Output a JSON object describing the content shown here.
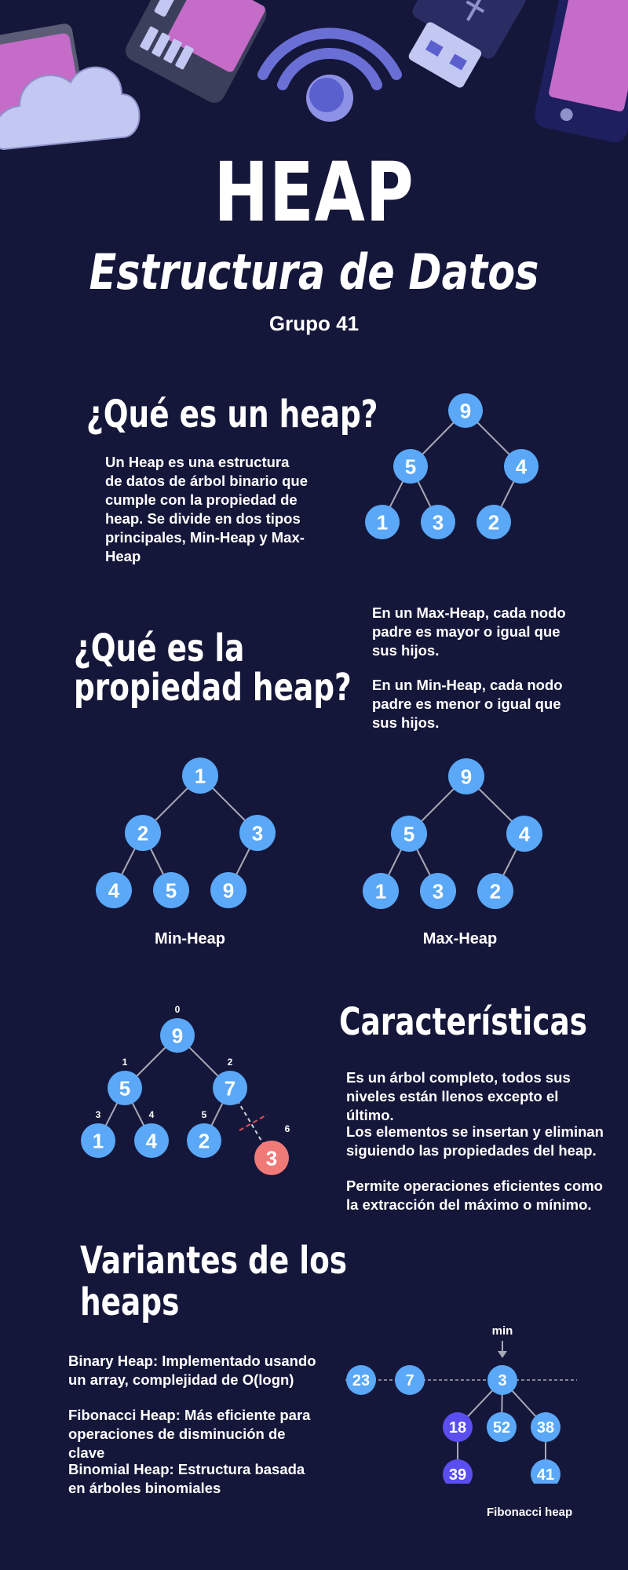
{
  "header": {
    "title": "HEAP",
    "subtitle": "Estructura de Datos",
    "group": "Grupo 41"
  },
  "section_what": {
    "heading": "¿Qué es un heap?",
    "text": "Un Heap es una estructura de datos de árbol binario que cumple con la propiedad de heap. Se divide en dos tipos principales, Min-Heap y Max-Heap",
    "tree_nodes": [
      "9",
      "5",
      "4",
      "1",
      "3",
      "2"
    ]
  },
  "section_property": {
    "heading_line1": "¿Qué es la",
    "heading_line2": "propiedad heap?",
    "max_text": "En un Max-Heap, cada nodo padre es mayor o igual que sus hijos.",
    "min_text": "En un Min-Heap, cada nodo padre es menor o igual que sus hijos.",
    "min_heap": {
      "label": "Min-Heap",
      "nodes": [
        "1",
        "2",
        "3",
        "4",
        "5",
        "9"
      ]
    },
    "max_heap": {
      "label": "Max-Heap",
      "nodes": [
        "9",
        "5",
        "4",
        "1",
        "3",
        "2"
      ]
    }
  },
  "section_features": {
    "heading": "Características",
    "items": [
      "Es un árbol completo, todos sus niveles están llenos excepto el último.",
      "Los elementos se insertan y eliminan siguiendo las propiedades del heap.",
      "Permite operaciones eficientes como la extracción del máximo o mínimo."
    ],
    "tree_nodes": [
      "9",
      "5",
      "7",
      "1",
      "4",
      "2",
      "3"
    ],
    "tree_indices": [
      "0",
      "1",
      "2",
      "3",
      "4",
      "5",
      "6"
    ]
  },
  "section_variants": {
    "heading_line1": "Variantes de los",
    "heading_line2": "heaps",
    "items": [
      "Binary Heap: Implementado usando un array, complejidad de O(logn)",
      "Fibonacci Heap: Más eficiente para operaciones de disminución de clave",
      "Binomial Heap: Estructura basada en árboles binomiales"
    ],
    "fib_min_label": "min",
    "fib_caption": "Fibonacci heap",
    "fib_nodes": [
      "23",
      "7",
      "3",
      "18",
      "52",
      "38",
      "39",
      "41"
    ]
  },
  "colors": {
    "background": "#15173a",
    "node": "#5aa8f7",
    "node_purple": "#5a4ef0",
    "node_red": "#f07a78",
    "edge": "#a8a8b8"
  },
  "icons": [
    "folder-icon",
    "cloud-icon",
    "sd-card-icon",
    "wifi-icon",
    "usb-drive-icon",
    "phone-icon"
  ]
}
